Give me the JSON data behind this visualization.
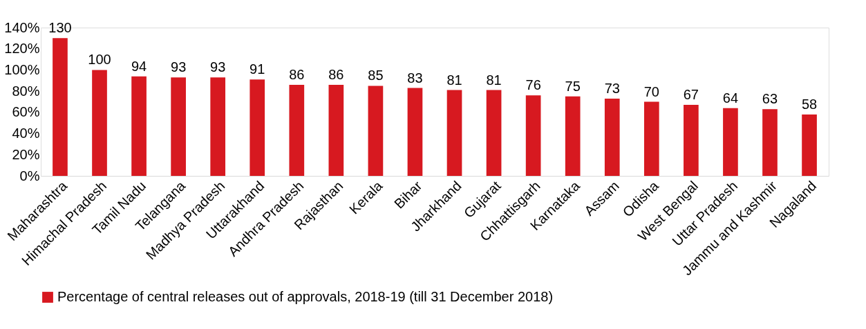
{
  "chart_data": {
    "type": "bar",
    "categories": [
      "Maharashtra",
      "Himachal Pradesh",
      "Tamil Nadu",
      "Telangana",
      "Madhya Pradesh",
      "Uttarakhand",
      "Andhra Pradesh",
      "Rajasthan",
      "Kerala",
      "Bihar",
      "Jharkhand",
      "Gujarat",
      "Chhattisgarh",
      "Karnataka",
      "Assam",
      "Odisha",
      "West Bengal",
      "Uttar Pradesh",
      "Jammu and Kashmir",
      "Nagaland"
    ],
    "series": [
      {
        "name": "Percentage of central releases out of approvals, 2018-19 (till 31 December 2018)",
        "color": "#d71920",
        "values": [
          130,
          100,
          94,
          93,
          93,
          91,
          86,
          86,
          85,
          83,
          81,
          81,
          76,
          75,
          73,
          70,
          67,
          64,
          63,
          58
        ]
      }
    ],
    "ylim": [
      0,
      140
    ],
    "yticks": [
      {
        "value": 0,
        "label": "0%"
      },
      {
        "value": 20,
        "label": "20%"
      },
      {
        "value": 40,
        "label": "40%"
      },
      {
        "value": 60,
        "label": "60%"
      },
      {
        "value": 80,
        "label": "80%"
      },
      {
        "value": 100,
        "label": "100%"
      },
      {
        "value": 120,
        "label": "120%"
      },
      {
        "value": 140,
        "label": "140%"
      }
    ],
    "data_labels": true,
    "grid": false,
    "legend": "bottom"
  }
}
